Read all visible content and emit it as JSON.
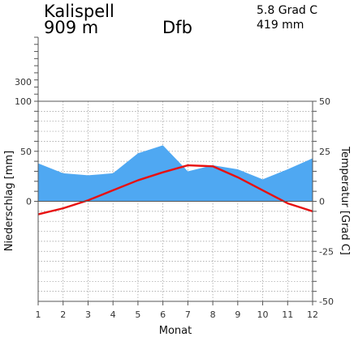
{
  "header": {
    "station": "Kalispell",
    "elevation": "909 m",
    "climate_class": "Dfb",
    "mean_temperature": "5.8 Grad C",
    "annual_precipitation": "419 mm"
  },
  "chart_data": {
    "type": "area",
    "title": "Kalispell",
    "xlabel": "Monat",
    "ylabel_left": "Niederschlag [mm]",
    "ylabel_right": "Temperatur [Grad C]",
    "x": [
      1,
      2,
      3,
      4,
      5,
      6,
      7,
      8,
      9,
      10,
      11,
      12
    ],
    "x_ticks": [
      "1",
      "2",
      "3",
      "4",
      "5",
      "6",
      "7",
      "8",
      "9",
      "10",
      "11",
      "12"
    ],
    "left_ticks": [
      "300",
      "100",
      "50",
      "0"
    ],
    "right_ticks": [
      "50",
      "25",
      "0",
      "-25",
      "-50"
    ],
    "precip_ylim": [
      0,
      100
    ],
    "temp_ylim": [
      -50,
      50
    ],
    "grid": true,
    "series": [
      {
        "name": "Niederschlag",
        "kind": "area",
        "axis": "left",
        "color": "#4fa8f2",
        "values": [
          38,
          28,
          26,
          28,
          48,
          56,
          30,
          36,
          32,
          22,
          32,
          43
        ]
      },
      {
        "name": "Temperatur",
        "kind": "line",
        "axis": "right",
        "color": "#e81010",
        "values": [
          -6.5,
          -3.5,
          0.5,
          5.5,
          10.5,
          14.5,
          18,
          17.5,
          12,
          5.5,
          -1,
          -5
        ]
      }
    ]
  }
}
